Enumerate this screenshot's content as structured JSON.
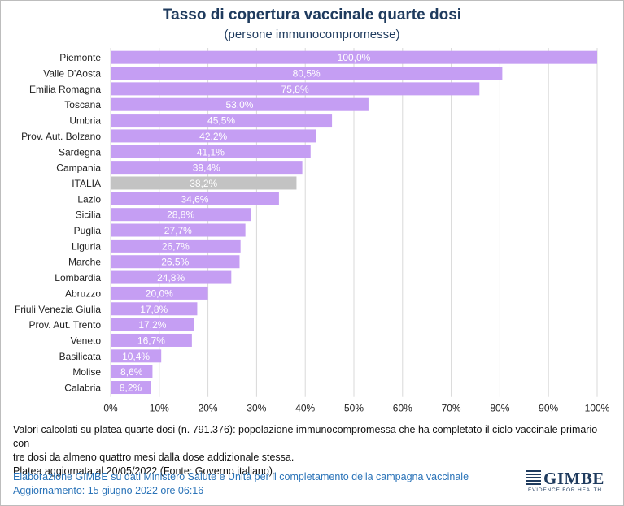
{
  "header": {
    "title": "Tasso di copertura vaccinale quarte dosi",
    "subtitle": "(persone immunocompromesse)"
  },
  "chart_data": {
    "type": "bar",
    "orientation": "horizontal",
    "categories": [
      "Piemonte",
      "Valle D'Aosta",
      "Emilia Romagna",
      "Toscana",
      "Umbria",
      "Prov. Aut. Bolzano",
      "Sardegna",
      "Campania",
      "ITALIA",
      "Lazio",
      "Sicilia",
      "Puglia",
      "Liguria",
      "Marche",
      "Lombardia",
      "Abruzzo",
      "Friuli Venezia Giulia",
      "Prov. Aut. Trento",
      "Veneto",
      "Basilicata",
      "Molise",
      "Calabria"
    ],
    "values": [
      100.0,
      80.5,
      75.8,
      53.0,
      45.5,
      42.2,
      41.1,
      39.4,
      38.2,
      34.6,
      28.8,
      27.7,
      26.7,
      26.5,
      24.8,
      20.0,
      17.8,
      17.2,
      16.7,
      10.4,
      8.6,
      8.2
    ],
    "value_labels": [
      "100,0%",
      "80,5%",
      "75,8%",
      "53,0%",
      "45,5%",
      "42,2%",
      "41,1%",
      "39,4%",
      "38,2%",
      "34,6%",
      "28,8%",
      "27,7%",
      "26,7%",
      "26,5%",
      "24,8%",
      "20,0%",
      "17,8%",
      "17,2%",
      "16,7%",
      "10,4%",
      "8,6%",
      "8,2%"
    ],
    "highlight_category": "ITALIA",
    "xlim": [
      0,
      100
    ],
    "x_ticks": [
      "0%",
      "10%",
      "20%",
      "30%",
      "40%",
      "50%",
      "60%",
      "70%",
      "80%",
      "90%",
      "100%"
    ],
    "grid": true,
    "colors": {
      "bar": "#c59ef3",
      "highlight": "#c3c3c3",
      "grid": "#d9d9d9",
      "label": "#ffffff"
    }
  },
  "note": {
    "line1": "Valori calcolati su platea quarte dosi (n. 791.376): popolazione immunocompromessa che ha completato il ciclo vaccinale primario con",
    "line2": "tre dosi da almeno quattro mesi dalla dose addizionale stessa.",
    "line3": "Platea aggiornata al 20/05/2022 (Fonte: Governo italiano)."
  },
  "footer": {
    "line1": "Elaborazione GIMBE su dati Ministero Salute e Unità per il completamento della campagna vaccinale",
    "line2": "Aggiornamento: 15 giugno 2022 ore 06:16"
  },
  "logo": {
    "name": "GIMBE",
    "tagline": "EVIDENCE FOR HEALTH"
  }
}
